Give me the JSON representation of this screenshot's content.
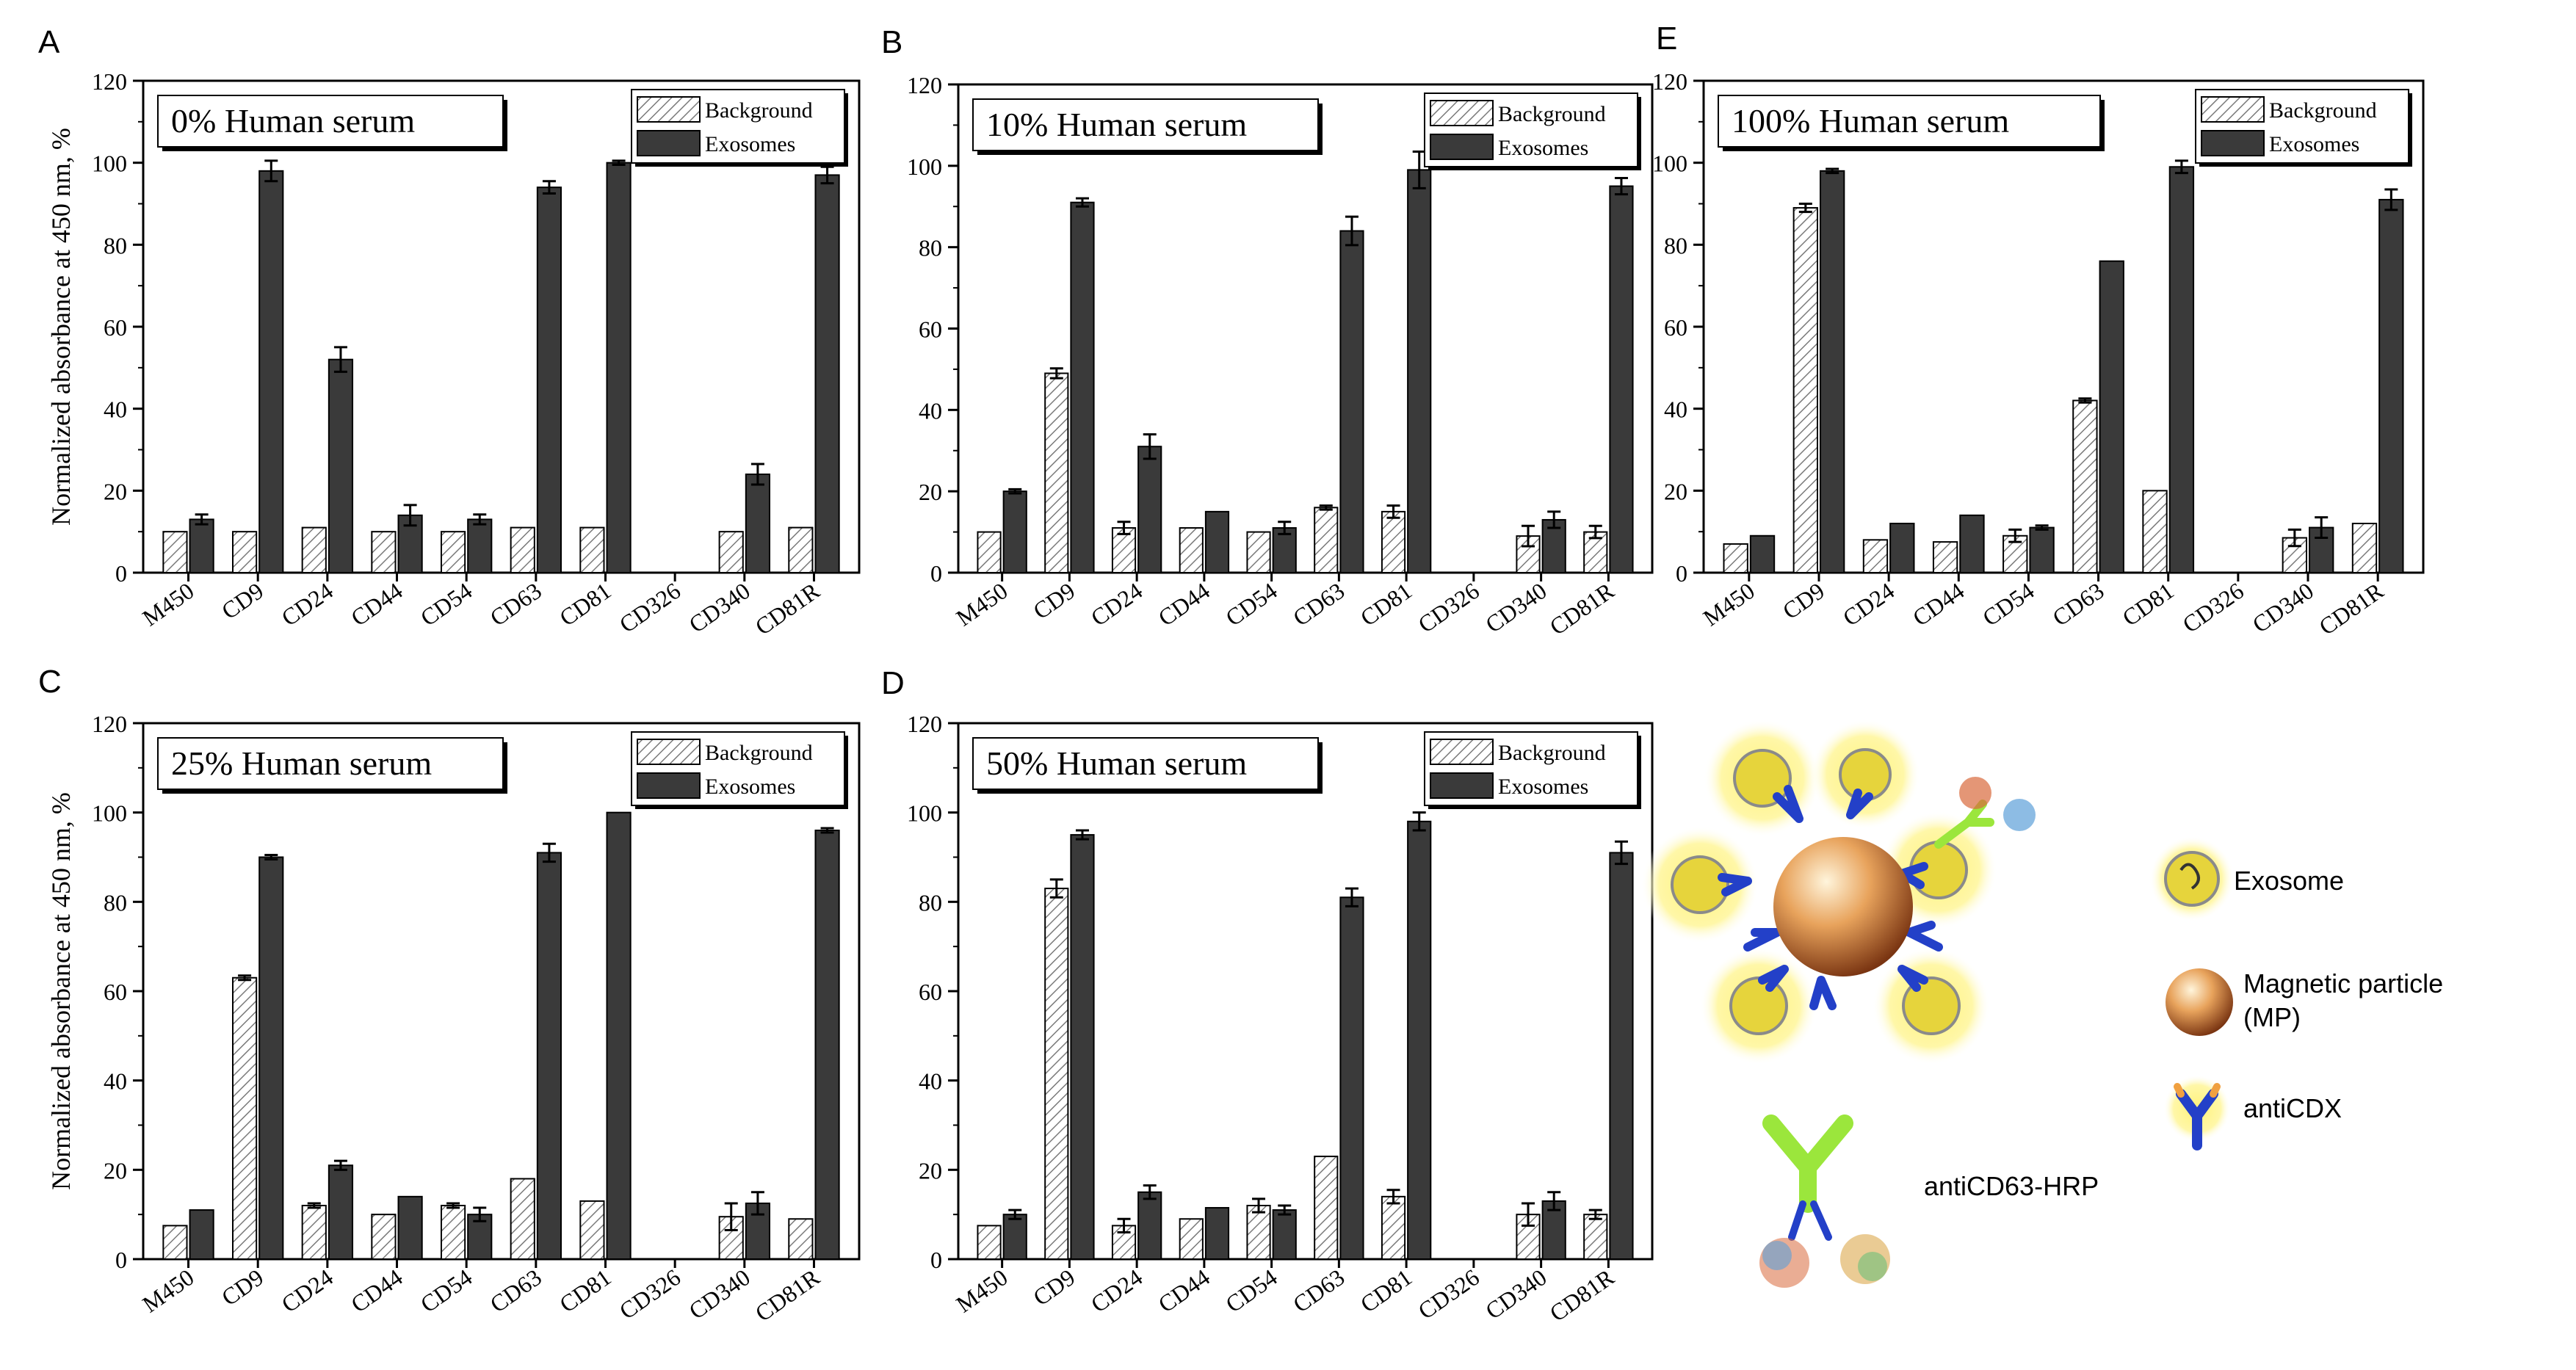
{
  "figure": {
    "y_axis_label": "Normalized absorbance at 450 nm, %",
    "legend": {
      "background": "Background",
      "exosomes": "Exosomes"
    }
  },
  "chart_data": [
    {
      "panel": "A",
      "type": "bar",
      "title": "0% Human serum",
      "categories": [
        "M450",
        "CD9",
        "CD24",
        "CD44",
        "CD54",
        "CD63",
        "CD81",
        "CD326",
        "CD340",
        "CD81R"
      ],
      "ylabel": "Normalized absorbance at 450 nm, %",
      "ylim": [
        0,
        120
      ],
      "yticks": [
        0,
        20,
        40,
        60,
        80,
        100,
        120
      ],
      "legend": "top-right",
      "series": [
        {
          "name": "Background",
          "values": [
            10,
            10,
            11,
            10,
            10,
            11,
            11,
            null,
            10,
            11
          ],
          "errors": [
            0,
            0,
            0,
            0,
            0,
            0,
            0,
            null,
            0,
            0
          ]
        },
        {
          "name": "Exosomes",
          "values": [
            13,
            98,
            52,
            14,
            13,
            94,
            100,
            null,
            24,
            97
          ],
          "errors": [
            1.2,
            2.5,
            3,
            2.5,
            1.2,
            1.5,
            0.5,
            null,
            2.5,
            2
          ]
        }
      ]
    },
    {
      "panel": "B",
      "type": "bar",
      "title": "10% Human serum",
      "categories": [
        "M450",
        "CD9",
        "CD24",
        "CD44",
        "CD54",
        "CD63",
        "CD81",
        "CD326",
        "CD340",
        "CD81R"
      ],
      "ylabel": "",
      "ylim": [
        0,
        120
      ],
      "yticks": [
        0,
        20,
        40,
        60,
        80,
        100,
        120
      ],
      "legend": "top-right",
      "series": [
        {
          "name": "Background",
          "values": [
            10,
            49,
            11,
            11,
            10,
            16,
            15,
            null,
            9,
            10
          ],
          "errors": [
            0,
            1.2,
            1.5,
            0,
            0,
            0.5,
            1.5,
            null,
            2.5,
            1.5
          ]
        },
        {
          "name": "Exosomes",
          "values": [
            20,
            91,
            31,
            15,
            11,
            84,
            99,
            null,
            13,
            95
          ],
          "errors": [
            0.5,
            1,
            3,
            0,
            1.5,
            3.5,
            4.5,
            null,
            2,
            2
          ]
        }
      ]
    },
    {
      "panel": "E",
      "type": "bar",
      "title": "100% Human serum",
      "categories": [
        "M450",
        "CD9",
        "CD24",
        "CD44",
        "CD54",
        "CD63",
        "CD81",
        "CD326",
        "CD340",
        "CD81R"
      ],
      "ylabel": "",
      "ylim": [
        0,
        120
      ],
      "yticks": [
        0,
        20,
        40,
        60,
        80,
        100,
        120
      ],
      "legend": "top-right",
      "series": [
        {
          "name": "Background",
          "values": [
            7,
            89,
            8,
            7.5,
            9,
            42,
            20,
            null,
            8.5,
            12
          ],
          "errors": [
            0,
            1,
            0,
            0,
            1.5,
            0.5,
            0,
            null,
            2,
            0
          ]
        },
        {
          "name": "Exosomes",
          "values": [
            9,
            98,
            12,
            14,
            11,
            76,
            99,
            null,
            11,
            91
          ],
          "errors": [
            0,
            0.5,
            0,
            0,
            0.5,
            0,
            1.5,
            null,
            2.5,
            2.5
          ]
        }
      ]
    },
    {
      "panel": "C",
      "type": "bar",
      "title": "25% Human serum",
      "categories": [
        "M450",
        "CD9",
        "CD24",
        "CD44",
        "CD54",
        "CD63",
        "CD81",
        "CD326",
        "CD340",
        "CD81R"
      ],
      "ylabel": "Normalized absorbance at 450 nm, %",
      "ylim": [
        0,
        120
      ],
      "yticks": [
        0,
        20,
        40,
        60,
        80,
        100,
        120
      ],
      "legend": "top-right",
      "series": [
        {
          "name": "Background",
          "values": [
            7.5,
            63,
            12,
            10,
            12,
            18,
            13,
            null,
            9.5,
            9
          ],
          "errors": [
            0,
            0.5,
            0.5,
            0,
            0.5,
            0,
            0,
            null,
            3,
            0
          ]
        },
        {
          "name": "Exosomes",
          "values": [
            11,
            90,
            21,
            14,
            10,
            91,
            100,
            null,
            12.5,
            96
          ],
          "errors": [
            0,
            0.5,
            1,
            0,
            1.5,
            2,
            0,
            null,
            2.5,
            0.5
          ]
        }
      ]
    },
    {
      "panel": "D",
      "type": "bar",
      "title": "50% Human serum",
      "categories": [
        "M450",
        "CD9",
        "CD24",
        "CD44",
        "CD54",
        "CD63",
        "CD81",
        "CD326",
        "CD340",
        "CD81R"
      ],
      "ylabel": "",
      "ylim": [
        0,
        120
      ],
      "yticks": [
        0,
        20,
        40,
        60,
        80,
        100,
        120
      ],
      "legend": "top-right",
      "series": [
        {
          "name": "Background",
          "values": [
            7.5,
            83,
            7.5,
            9,
            12,
            23,
            14,
            null,
            10,
            10
          ],
          "errors": [
            0,
            2,
            1.5,
            0,
            1.5,
            0,
            1.5,
            null,
            2.5,
            1
          ]
        },
        {
          "name": "Exosomes",
          "values": [
            10,
            95,
            15,
            11.5,
            11,
            81,
            98,
            null,
            13,
            91
          ],
          "errors": [
            1,
            1,
            1.5,
            0,
            1,
            2,
            2,
            null,
            2,
            2.5
          ]
        }
      ]
    }
  ],
  "schematic": {
    "labels": {
      "exosome": "Exosome",
      "magnetic_particle_line1": "Magnetic particle",
      "magnetic_particle_line2": "(MP)",
      "anticdx": "antiCDX",
      "anticd63_hrp": "antiCD63-HRP"
    },
    "colors": {
      "exosome_glow": "#fff27a",
      "exosome_fill": "#e6d43c",
      "particle": "#c8783c",
      "antibody_blue": "#2340c8",
      "antibody_green": "#9be63c",
      "bar_dark": "#3a3a3a"
    }
  }
}
